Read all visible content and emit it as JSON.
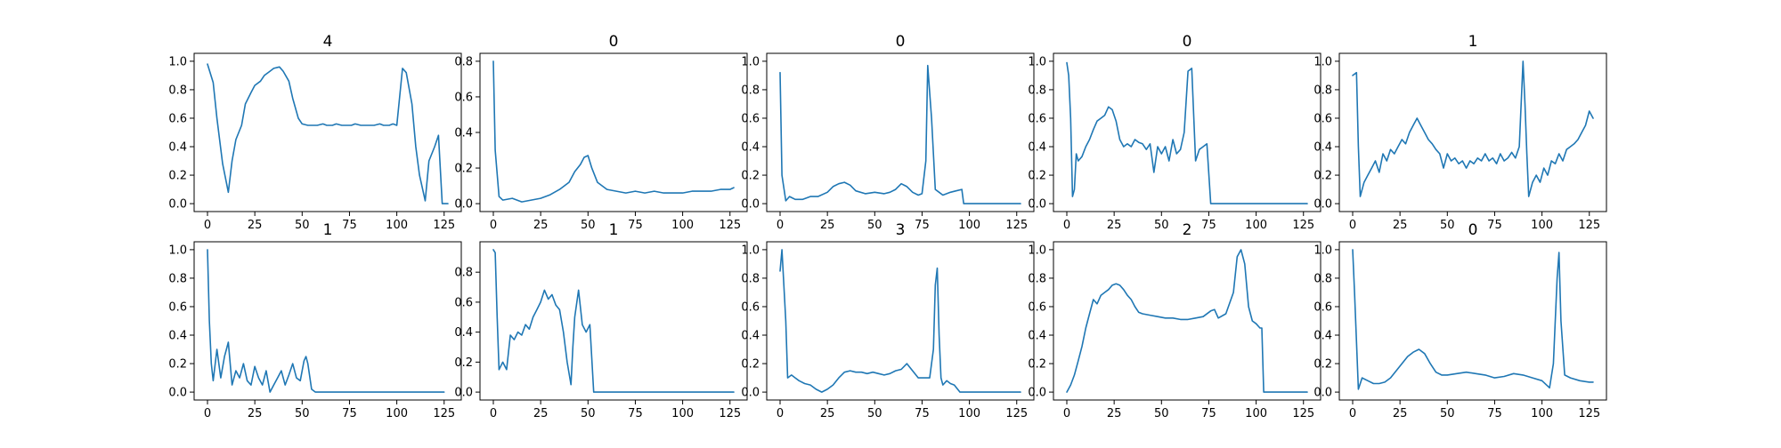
{
  "chart_data": [
    {
      "type": "line",
      "title": "4",
      "xlim": [
        0,
        127
      ],
      "ylim": [
        0,
        1.0
      ],
      "xticks": [
        0,
        25,
        50,
        75,
        100,
        125
      ],
      "yticks": [
        0,
        0.2,
        0.4,
        0.6,
        0.8,
        1.0
      ],
      "x": [
        0,
        3,
        5,
        8,
        11,
        13,
        15,
        18,
        20,
        23,
        25,
        28,
        30,
        33,
        35,
        38,
        40,
        43,
        45,
        48,
        50,
        53,
        56,
        58,
        61,
        63,
        66,
        68,
        71,
        73,
        76,
        78,
        81,
        83,
        86,
        88,
        91,
        93,
        96,
        98,
        100,
        103,
        105,
        108,
        110,
        112,
        115,
        117,
        120,
        122,
        124,
        127
      ],
      "values": [
        0.98,
        0.85,
        0.6,
        0.28,
        0.08,
        0.3,
        0.45,
        0.55,
        0.7,
        0.78,
        0.83,
        0.86,
        0.9,
        0.93,
        0.95,
        0.96,
        0.93,
        0.86,
        0.74,
        0.6,
        0.56,
        0.55,
        0.55,
        0.55,
        0.56,
        0.55,
        0.55,
        0.56,
        0.55,
        0.55,
        0.55,
        0.56,
        0.55,
        0.55,
        0.55,
        0.55,
        0.56,
        0.55,
        0.55,
        0.56,
        0.55,
        0.95,
        0.92,
        0.7,
        0.4,
        0.2,
        0.02,
        0.3,
        0.4,
        0.48,
        0.0,
        0.0
      ]
    },
    {
      "type": "line",
      "title": "0",
      "xlim": [
        0,
        127
      ],
      "ylim": [
        0,
        0.8
      ],
      "xticks": [
        0,
        25,
        50,
        75,
        100,
        125
      ],
      "yticks": [
        0,
        0.2,
        0.4,
        0.6,
        0.8
      ],
      "x": [
        0,
        1,
        3,
        5,
        10,
        15,
        20,
        25,
        30,
        35,
        40,
        43,
        46,
        48,
        50,
        52,
        55,
        60,
        65,
        70,
        75,
        80,
        85,
        90,
        95,
        100,
        105,
        110,
        115,
        120,
        125,
        127
      ],
      "values": [
        0.8,
        0.3,
        0.04,
        0.02,
        0.03,
        0.01,
        0.02,
        0.03,
        0.05,
        0.08,
        0.12,
        0.18,
        0.22,
        0.26,
        0.27,
        0.2,
        0.12,
        0.08,
        0.07,
        0.06,
        0.07,
        0.06,
        0.07,
        0.06,
        0.06,
        0.06,
        0.07,
        0.07,
        0.07,
        0.08,
        0.08,
        0.09
      ]
    },
    {
      "type": "line",
      "title": "0",
      "xlim": [
        0,
        127
      ],
      "ylim": [
        0,
        1.0
      ],
      "xticks": [
        0,
        25,
        50,
        75,
        100,
        125
      ],
      "yticks": [
        0,
        0.2,
        0.4,
        0.6,
        0.8,
        1.0
      ],
      "x": [
        0,
        1,
        3,
        5,
        8,
        12,
        16,
        20,
        25,
        28,
        31,
        34,
        37,
        40,
        45,
        50,
        55,
        58,
        61,
        64,
        67,
        70,
        73,
        75,
        77,
        78,
        80,
        82,
        84,
        86,
        90,
        93,
        96,
        97,
        100,
        110,
        120,
        127
      ],
      "values": [
        0.92,
        0.2,
        0.02,
        0.05,
        0.03,
        0.03,
        0.05,
        0.05,
        0.08,
        0.12,
        0.14,
        0.15,
        0.13,
        0.09,
        0.07,
        0.08,
        0.07,
        0.08,
        0.1,
        0.14,
        0.12,
        0.08,
        0.06,
        0.07,
        0.3,
        0.97,
        0.6,
        0.1,
        0.08,
        0.06,
        0.08,
        0.09,
        0.1,
        0.0,
        0.0,
        0.0,
        0.0,
        0.0
      ]
    },
    {
      "type": "line",
      "title": "0",
      "xlim": [
        0,
        127
      ],
      "ylim": [
        0,
        1.0
      ],
      "xticks": [
        0,
        25,
        50,
        75,
        100,
        125
      ],
      "yticks": [
        0,
        0.2,
        0.4,
        0.6,
        0.8,
        1.0
      ],
      "x": [
        0,
        1,
        2,
        3,
        4,
        5,
        6,
        8,
        10,
        12,
        14,
        16,
        18,
        20,
        22,
        24,
        26,
        28,
        30,
        32,
        34,
        36,
        38,
        40,
        42,
        44,
        46,
        48,
        50,
        52,
        54,
        56,
        58,
        60,
        62,
        64,
        66,
        68,
        70,
        72,
        74,
        76,
        80,
        90,
        100,
        110,
        120,
        127
      ],
      "values": [
        0.99,
        0.9,
        0.6,
        0.05,
        0.1,
        0.35,
        0.3,
        0.33,
        0.4,
        0.45,
        0.52,
        0.58,
        0.6,
        0.62,
        0.68,
        0.66,
        0.58,
        0.45,
        0.4,
        0.42,
        0.4,
        0.45,
        0.43,
        0.42,
        0.38,
        0.42,
        0.22,
        0.4,
        0.35,
        0.4,
        0.3,
        0.45,
        0.35,
        0.38,
        0.5,
        0.93,
        0.95,
        0.3,
        0.38,
        0.4,
        0.42,
        0.0,
        0.0,
        0.0,
        0.0,
        0.0,
        0.0,
        0.0
      ]
    },
    {
      "type": "line",
      "title": "1",
      "xlim": [
        0,
        127
      ],
      "ylim": [
        0,
        1.0
      ],
      "xticks": [
        0,
        25,
        50,
        75,
        100,
        125
      ],
      "yticks": [
        0,
        0.2,
        0.4,
        0.6,
        0.8,
        1.0
      ],
      "x": [
        0,
        2,
        3,
        4,
        6,
        8,
        10,
        12,
        14,
        16,
        18,
        20,
        22,
        24,
        26,
        28,
        30,
        32,
        34,
        36,
        38,
        40,
        42,
        44,
        46,
        48,
        50,
        52,
        54,
        56,
        58,
        60,
        62,
        64,
        66,
        68,
        70,
        72,
        74,
        76,
        78,
        80,
        82,
        84,
        86,
        88,
        89,
        90,
        91,
        92,
        93,
        95,
        97,
        99,
        101,
        103,
        105,
        107,
        109,
        111,
        113,
        115,
        117,
        119,
        121,
        123,
        125,
        127
      ],
      "values": [
        0.9,
        0.92,
        0.4,
        0.05,
        0.15,
        0.2,
        0.25,
        0.3,
        0.22,
        0.35,
        0.3,
        0.38,
        0.35,
        0.4,
        0.45,
        0.42,
        0.5,
        0.55,
        0.6,
        0.55,
        0.5,
        0.45,
        0.42,
        0.38,
        0.35,
        0.25,
        0.35,
        0.3,
        0.32,
        0.28,
        0.3,
        0.25,
        0.3,
        0.28,
        0.32,
        0.3,
        0.35,
        0.3,
        0.32,
        0.28,
        0.35,
        0.3,
        0.32,
        0.36,
        0.32,
        0.4,
        0.7,
        1.0,
        0.7,
        0.35,
        0.05,
        0.15,
        0.2,
        0.15,
        0.25,
        0.2,
        0.3,
        0.28,
        0.35,
        0.3,
        0.38,
        0.4,
        0.42,
        0.45,
        0.5,
        0.55,
        0.65,
        0.6
      ]
    },
    {
      "type": "line",
      "title": "1",
      "xlim": [
        0,
        127
      ],
      "ylim": [
        0,
        1.0
      ],
      "xticks": [
        0,
        25,
        50,
        75,
        100,
        125
      ],
      "yticks": [
        0,
        0.2,
        0.4,
        0.6,
        0.8,
        1.0
      ],
      "x": [
        0,
        1,
        2,
        3,
        5,
        7,
        9,
        11,
        13,
        15,
        17,
        19,
        21,
        23,
        25,
        27,
        29,
        31,
        33,
        35,
        37,
        39,
        41,
        43,
        45,
        47,
        49,
        51,
        52,
        53,
        55,
        57,
        60,
        65,
        70,
        75,
        80,
        85,
        90,
        95,
        100,
        105,
        110,
        115,
        120,
        125
      ],
      "values": [
        1.0,
        0.5,
        0.2,
        0.08,
        0.3,
        0.1,
        0.25,
        0.35,
        0.05,
        0.15,
        0.1,
        0.2,
        0.08,
        0.05,
        0.18,
        0.1,
        0.05,
        0.15,
        0.0,
        0.05,
        0.1,
        0.15,
        0.05,
        0.12,
        0.2,
        0.1,
        0.08,
        0.22,
        0.25,
        0.2,
        0.02,
        0.0,
        0.0,
        0.0,
        0.0,
        0.0,
        0.0,
        0.0,
        0.0,
        0.0,
        0.0,
        0.0,
        0.0,
        0.0,
        0.0,
        0.0
      ]
    },
    {
      "type": "line",
      "title": "1",
      "xlim": [
        0,
        127
      ],
      "ylim": [
        0,
        0.95
      ],
      "xticks": [
        0,
        25,
        50,
        75,
        100,
        125
      ],
      "yticks": [
        0,
        0.2,
        0.4,
        0.6,
        0.8
      ],
      "x": [
        0,
        1,
        2,
        3,
        5,
        7,
        9,
        11,
        13,
        15,
        17,
        19,
        21,
        23,
        25,
        27,
        29,
        31,
        33,
        35,
        37,
        39,
        41,
        42,
        43,
        45,
        47,
        49,
        51,
        53,
        55,
        60,
        70,
        80,
        90,
        100,
        110,
        120,
        127
      ],
      "values": [
        0.95,
        0.93,
        0.5,
        0.15,
        0.2,
        0.15,
        0.38,
        0.35,
        0.4,
        0.38,
        0.45,
        0.42,
        0.5,
        0.55,
        0.6,
        0.68,
        0.62,
        0.65,
        0.58,
        0.55,
        0.4,
        0.2,
        0.05,
        0.3,
        0.5,
        0.68,
        0.45,
        0.4,
        0.45,
        0.0,
        0.0,
        0.0,
        0.0,
        0.0,
        0.0,
        0.0,
        0.0,
        0.0,
        0.0
      ]
    },
    {
      "type": "line",
      "title": "3",
      "xlim": [
        0,
        127
      ],
      "ylim": [
        0,
        1.0
      ],
      "xticks": [
        0,
        25,
        50,
        75,
        100,
        125
      ],
      "yticks": [
        0,
        0.2,
        0.4,
        0.6,
        0.8,
        1.0
      ],
      "x": [
        0,
        1,
        3,
        4,
        6,
        8,
        10,
        13,
        16,
        19,
        22,
        25,
        28,
        31,
        34,
        37,
        40,
        43,
        46,
        49,
        52,
        55,
        58,
        61,
        64,
        67,
        70,
        73,
        76,
        79,
        81,
        82,
        83,
        84,
        85,
        86,
        88,
        90,
        92,
        95,
        98,
        100,
        110,
        120,
        127
      ],
      "values": [
        0.85,
        1.0,
        0.5,
        0.1,
        0.12,
        0.1,
        0.08,
        0.06,
        0.05,
        0.02,
        0.0,
        0.02,
        0.05,
        0.1,
        0.14,
        0.15,
        0.14,
        0.14,
        0.13,
        0.14,
        0.13,
        0.12,
        0.13,
        0.15,
        0.16,
        0.2,
        0.15,
        0.1,
        0.1,
        0.1,
        0.3,
        0.75,
        0.87,
        0.4,
        0.1,
        0.05,
        0.08,
        0.06,
        0.05,
        0.0,
        0.0,
        0.0,
        0.0,
        0.0,
        0.0
      ]
    },
    {
      "type": "line",
      "title": "2",
      "xlim": [
        0,
        127
      ],
      "ylim": [
        0,
        1.0
      ],
      "xticks": [
        0,
        25,
        50,
        75,
        100,
        125
      ],
      "yticks": [
        0,
        0.2,
        0.4,
        0.6,
        0.8,
        1.0
      ],
      "x": [
        0,
        2,
        4,
        6,
        8,
        10,
        12,
        14,
        16,
        18,
        20,
        22,
        24,
        26,
        28,
        30,
        32,
        34,
        36,
        38,
        40,
        44,
        48,
        52,
        56,
        60,
        64,
        68,
        72,
        76,
        78,
        80,
        84,
        88,
        90,
        92,
        94,
        96,
        98,
        100,
        102,
        103,
        104,
        110,
        120,
        127
      ],
      "values": [
        0.0,
        0.05,
        0.12,
        0.22,
        0.32,
        0.45,
        0.55,
        0.65,
        0.62,
        0.68,
        0.7,
        0.72,
        0.75,
        0.76,
        0.75,
        0.72,
        0.68,
        0.65,
        0.6,
        0.56,
        0.55,
        0.54,
        0.53,
        0.52,
        0.52,
        0.51,
        0.51,
        0.52,
        0.53,
        0.57,
        0.58,
        0.52,
        0.55,
        0.7,
        0.95,
        1.0,
        0.9,
        0.6,
        0.5,
        0.48,
        0.45,
        0.45,
        0.0,
        0.0,
        0.0,
        0.0
      ]
    },
    {
      "type": "line",
      "title": "0",
      "xlim": [
        0,
        127
      ],
      "ylim": [
        0,
        1.0
      ],
      "xticks": [
        0,
        25,
        50,
        75,
        100,
        125
      ],
      "yticks": [
        0,
        0.2,
        0.4,
        0.6,
        0.8,
        1.0
      ],
      "x": [
        0,
        1,
        3,
        5,
        8,
        11,
        14,
        17,
        20,
        23,
        26,
        29,
        32,
        35,
        38,
        41,
        44,
        47,
        50,
        55,
        60,
        65,
        70,
        75,
        80,
        85,
        90,
        95,
        100,
        104,
        106,
        108,
        109,
        110,
        112,
        115,
        120,
        125,
        127
      ],
      "values": [
        1.0,
        0.7,
        0.02,
        0.1,
        0.08,
        0.06,
        0.06,
        0.07,
        0.1,
        0.15,
        0.2,
        0.25,
        0.28,
        0.3,
        0.27,
        0.2,
        0.14,
        0.12,
        0.12,
        0.13,
        0.14,
        0.13,
        0.12,
        0.1,
        0.11,
        0.13,
        0.12,
        0.1,
        0.08,
        0.03,
        0.2,
        0.8,
        0.98,
        0.5,
        0.12,
        0.1,
        0.08,
        0.07,
        0.07
      ]
    }
  ],
  "style": {
    "line_color": "#1f77b4"
  }
}
